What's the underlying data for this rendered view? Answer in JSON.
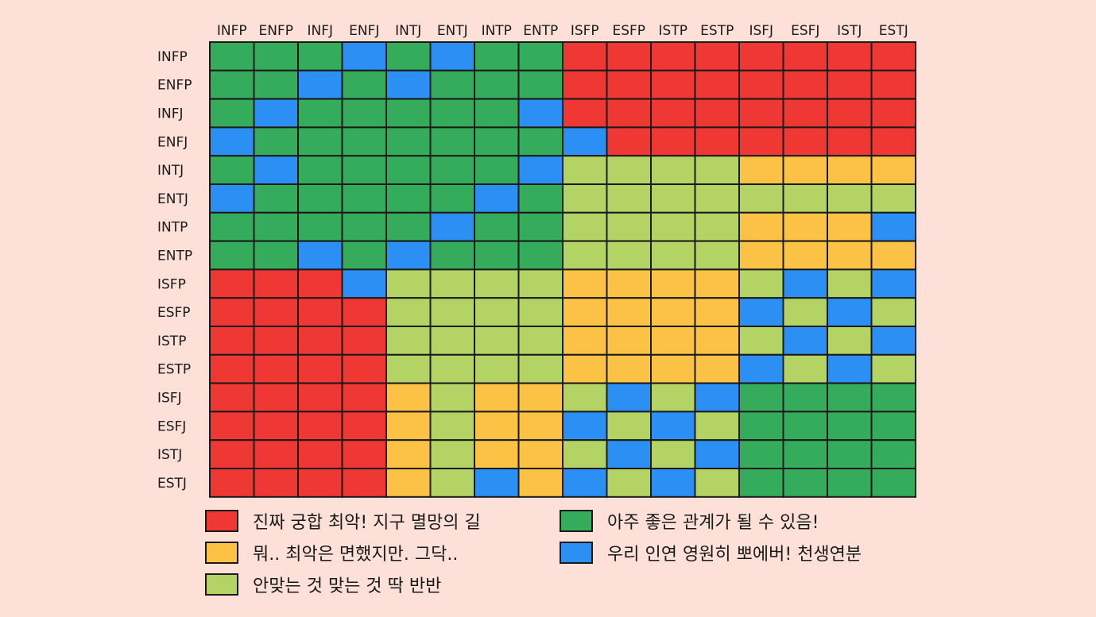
{
  "colors": {
    "worst": "#ef3733",
    "meh": "#fbc245",
    "half": "#b3d465",
    "good": "#35ab5c",
    "best": "#2c8ff4",
    "border": "#1a1a1a"
  },
  "legend": {
    "worst": "진짜 궁합 최악! 지구 멸망의 길",
    "meh": "뭐.. 최악은 면했지만. 그닥..",
    "half": "안맞는 것 맞는 것 딱 반반",
    "good": "아주 좋은 관계가 될 수 있음!",
    "best": "우리 인연 영원히 뽀에버! 천생연분"
  },
  "chart_data": {
    "type": "heatmap",
    "title": "",
    "x": [
      "INFP",
      "ENFP",
      "INFJ",
      "ENFJ",
      "INTJ",
      "ENTJ",
      "INTP",
      "ENTP",
      "ISFP",
      "ESFP",
      "ISTP",
      "ESTP",
      "ISFJ",
      "ESFJ",
      "ISTJ",
      "ESTJ"
    ],
    "y": [
      "INFP",
      "ENFP",
      "INFJ",
      "ENFJ",
      "INTJ",
      "ENTJ",
      "INTP",
      "ENTP",
      "ISFP",
      "ESFP",
      "ISTP",
      "ESTP",
      "ISFJ",
      "ESFJ",
      "ISTJ",
      "ESTJ"
    ],
    "categories": [
      "worst",
      "meh",
      "half",
      "good",
      "best"
    ],
    "matrix": [
      [
        "good",
        "good",
        "good",
        "best",
        "good",
        "best",
        "good",
        "good",
        "worst",
        "worst",
        "worst",
        "worst",
        "worst",
        "worst",
        "worst",
        "worst"
      ],
      [
        "good",
        "good",
        "best",
        "good",
        "best",
        "good",
        "good",
        "good",
        "worst",
        "worst",
        "worst",
        "worst",
        "worst",
        "worst",
        "worst",
        "worst"
      ],
      [
        "good",
        "best",
        "good",
        "good",
        "good",
        "good",
        "good",
        "best",
        "worst",
        "worst",
        "worst",
        "worst",
        "worst",
        "worst",
        "worst",
        "worst"
      ],
      [
        "best",
        "good",
        "good",
        "good",
        "good",
        "good",
        "good",
        "good",
        "best",
        "worst",
        "worst",
        "worst",
        "worst",
        "worst",
        "worst",
        "worst"
      ],
      [
        "good",
        "best",
        "good",
        "good",
        "good",
        "good",
        "good",
        "best",
        "half",
        "half",
        "half",
        "half",
        "meh",
        "meh",
        "meh",
        "meh"
      ],
      [
        "best",
        "good",
        "good",
        "good",
        "good",
        "good",
        "best",
        "good",
        "half",
        "half",
        "half",
        "half",
        "half",
        "half",
        "half",
        "half"
      ],
      [
        "good",
        "good",
        "good",
        "good",
        "good",
        "best",
        "good",
        "good",
        "half",
        "half",
        "half",
        "half",
        "meh",
        "meh",
        "meh",
        "best"
      ],
      [
        "good",
        "good",
        "best",
        "good",
        "best",
        "good",
        "good",
        "good",
        "half",
        "half",
        "half",
        "half",
        "meh",
        "meh",
        "meh",
        "meh"
      ],
      [
        "worst",
        "worst",
        "worst",
        "best",
        "half",
        "half",
        "half",
        "half",
        "meh",
        "meh",
        "meh",
        "meh",
        "half",
        "best",
        "half",
        "best"
      ],
      [
        "worst",
        "worst",
        "worst",
        "worst",
        "half",
        "half",
        "half",
        "half",
        "meh",
        "meh",
        "meh",
        "meh",
        "best",
        "half",
        "best",
        "half"
      ],
      [
        "worst",
        "worst",
        "worst",
        "worst",
        "half",
        "half",
        "half",
        "half",
        "meh",
        "meh",
        "meh",
        "meh",
        "half",
        "best",
        "half",
        "best"
      ],
      [
        "worst",
        "worst",
        "worst",
        "worst",
        "half",
        "half",
        "half",
        "half",
        "meh",
        "meh",
        "meh",
        "meh",
        "best",
        "half",
        "best",
        "half"
      ],
      [
        "worst",
        "worst",
        "worst",
        "worst",
        "meh",
        "half",
        "meh",
        "meh",
        "half",
        "best",
        "half",
        "best",
        "good",
        "good",
        "good",
        "good"
      ],
      [
        "worst",
        "worst",
        "worst",
        "worst",
        "meh",
        "half",
        "meh",
        "meh",
        "best",
        "half",
        "best",
        "half",
        "good",
        "good",
        "good",
        "good"
      ],
      [
        "worst",
        "worst",
        "worst",
        "worst",
        "meh",
        "half",
        "meh",
        "meh",
        "half",
        "best",
        "half",
        "best",
        "good",
        "good",
        "good",
        "good"
      ],
      [
        "worst",
        "worst",
        "worst",
        "worst",
        "meh",
        "half",
        "best",
        "meh",
        "best",
        "half",
        "best",
        "half",
        "good",
        "good",
        "good",
        "good"
      ]
    ],
    "grid": true,
    "legend_position": "bottom"
  }
}
